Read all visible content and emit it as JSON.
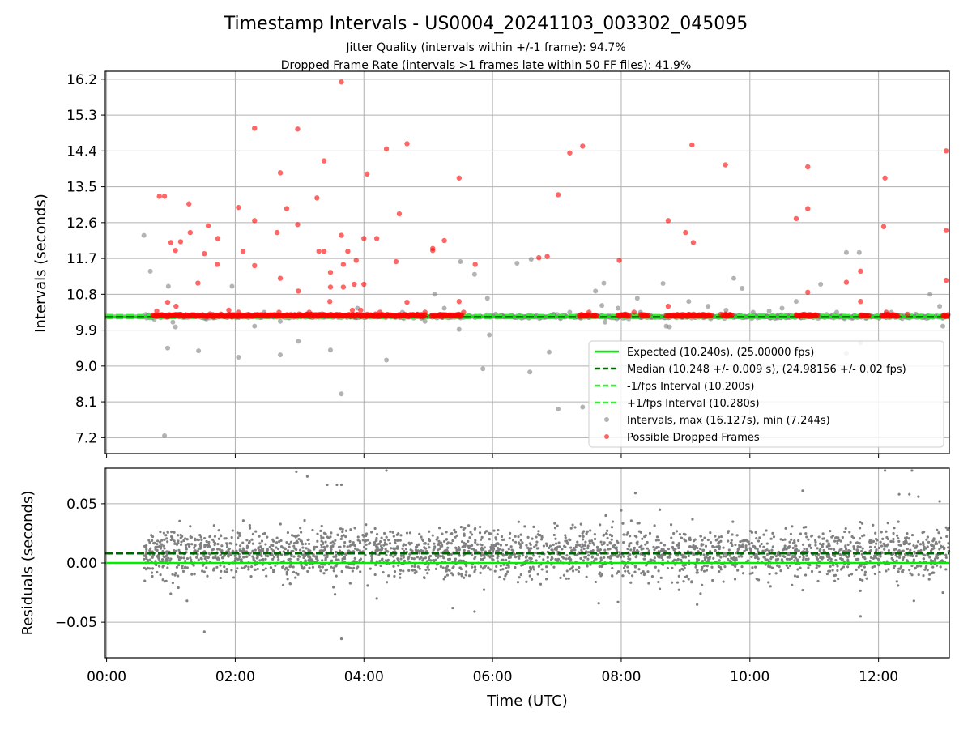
{
  "chart_data": [
    {
      "type": "scatter",
      "title": "Timestamp Intervals - US0004_20241103_003302_045095",
      "subtitle_lines": [
        "Jitter Quality (intervals within +/-1 frame): 94.7%",
        "Dropped Frame Rate (intervals >1 frames late within 50 FF files): 41.9%"
      ],
      "ylabel": "Intervals (seconds)",
      "xlim": [
        -0.02,
        13.1
      ],
      "ylim": [
        6.8,
        16.4
      ],
      "yticks": [
        "7.2",
        "8.1",
        "9.0",
        "9.9",
        "10.8",
        "11.7",
        "12.6",
        "13.5",
        "14.4",
        "15.3",
        "16.2"
      ],
      "ytick_values": [
        7.2,
        8.1,
        9.0,
        9.9,
        10.8,
        11.7,
        12.6,
        13.5,
        14.4,
        15.3,
        16.2
      ],
      "grid": true,
      "legend_position": "lower-right",
      "lines": [
        {
          "name": "Expected (10.240s), (25.00000 fps)",
          "y": 10.24,
          "color": "#00ee00",
          "style": "solid"
        },
        {
          "name": "Median (10.248 +/- 0.009 s), (24.98156 +/- 0.02 fps)",
          "y": 10.248,
          "color": "#006400",
          "style": "dashed"
        },
        {
          "name": "-1/fps Interval (10.200s)",
          "y": 10.2,
          "color": "#33ee33",
          "style": "dashed"
        },
        {
          "name": "+1/fps Interval (10.280s)",
          "y": 10.28,
          "color": "#33ee33",
          "style": "dashed"
        }
      ],
      "series": [
        {
          "name": "Intervals, max (16.127s), min (7.244s)",
          "color": "#808080",
          "points": [
            [
              0.58,
              12.28
            ],
            [
              0.68,
              11.38
            ],
            [
              0.9,
              7.25
            ],
            [
              0.95,
              9.45
            ],
            [
              0.96,
              11.0
            ],
            [
              1.03,
              10.1
            ],
            [
              1.07,
              9.98
            ],
            [
              1.43,
              9.38
            ],
            [
              1.55,
              10.18
            ],
            [
              1.95,
              11.0
            ],
            [
              2.05,
              9.22
            ],
            [
              2.3,
              10.0
            ],
            [
              2.7,
              10.12
            ],
            [
              2.7,
              9.28
            ],
            [
              2.98,
              9.62
            ],
            [
              3.48,
              9.4
            ],
            [
              3.65,
              8.3
            ],
            [
              4.0,
              10.25
            ],
            [
              4.35,
              9.15
            ],
            [
              4.95,
              10.12
            ],
            [
              5.1,
              10.8
            ],
            [
              5.25,
              10.45
            ],
            [
              5.5,
              11.62
            ],
            [
              5.48,
              9.92
            ],
            [
              5.72,
              11.3
            ],
            [
              5.85,
              8.93
            ],
            [
              5.92,
              10.7
            ],
            [
              5.95,
              9.78
            ],
            [
              6.38,
              11.58
            ],
            [
              6.58,
              8.85
            ],
            [
              6.6,
              11.68
            ],
            [
              6.88,
              9.35
            ],
            [
              7.02,
              7.92
            ],
            [
              7.4,
              7.97
            ],
            [
              7.6,
              10.88
            ],
            [
              7.7,
              10.52
            ],
            [
              7.73,
              11.08
            ],
            [
              7.75,
              10.1
            ],
            [
              7.95,
              10.45
            ],
            [
              8.25,
              10.7
            ],
            [
              8.3,
              10.35
            ],
            [
              8.65,
              11.07
            ],
            [
              8.7,
              10.0
            ],
            [
              8.75,
              9.98
            ],
            [
              9.05,
              10.62
            ],
            [
              9.35,
              10.5
            ],
            [
              9.63,
              10.4
            ],
            [
              9.75,
              11.2
            ],
            [
              9.88,
              10.95
            ],
            [
              10.3,
              10.38
            ],
            [
              10.5,
              10.45
            ],
            [
              10.72,
              10.62
            ],
            [
              10.92,
              10.3
            ],
            [
              11.1,
              11.05
            ],
            [
              11.5,
              11.85
            ],
            [
              11.5,
              9.32
            ],
            [
              11.7,
              11.85
            ],
            [
              11.72,
              9.58
            ],
            [
              12.58,
              10.3
            ],
            [
              12.8,
              10.8
            ],
            [
              12.95,
              10.5
            ],
            [
              13.0,
              10.0
            ],
            [
              1.15,
              10.3
            ],
            [
              1.62,
              10.25
            ],
            [
              2.45,
              10.35
            ],
            [
              3.1,
              10.3
            ],
            [
              3.9,
              10.45
            ],
            [
              4.6,
              10.35
            ],
            [
              6.05,
              10.3
            ],
            [
              6.95,
              10.3
            ],
            [
              7.2,
              10.35
            ],
            [
              8.05,
              10.3
            ],
            [
              8.95,
              10.3
            ],
            [
              10.05,
              10.35
            ],
            [
              11.35,
              10.35
            ],
            [
              12.2,
              10.35
            ]
          ]
        },
        {
          "name": "Possible Dropped Frames",
          "color": "#ff0000",
          "points": [
            [
              0.82,
              13.26
            ],
            [
              0.9,
              13.26
            ],
            [
              0.95,
              10.6
            ],
            [
              1.0,
              12.1
            ],
            [
              1.07,
              11.9
            ],
            [
              1.08,
              10.5
            ],
            [
              1.15,
              12.12
            ],
            [
              1.28,
              13.07
            ],
            [
              1.3,
              12.35
            ],
            [
              1.42,
              11.08
            ],
            [
              1.52,
              11.82
            ],
            [
              1.58,
              12.52
            ],
            [
              1.72,
              11.55
            ],
            [
              1.73,
              12.2
            ],
            [
              2.05,
              12.98
            ],
            [
              2.12,
              11.88
            ],
            [
              2.3,
              14.97
            ],
            [
              2.3,
              12.65
            ],
            [
              2.3,
              11.52
            ],
            [
              2.65,
              12.35
            ],
            [
              2.7,
              11.2
            ],
            [
              2.7,
              13.85
            ],
            [
              2.8,
              12.95
            ],
            [
              2.97,
              14.95
            ],
            [
              2.97,
              12.55
            ],
            [
              2.98,
              10.88
            ],
            [
              3.27,
              13.22
            ],
            [
              3.3,
              11.88
            ],
            [
              3.38,
              14.15
            ],
            [
              3.38,
              11.88
            ],
            [
              3.47,
              10.62
            ],
            [
              3.48,
              10.98
            ],
            [
              3.48,
              11.35
            ],
            [
              3.65,
              16.13
            ],
            [
              3.65,
              12.28
            ],
            [
              3.68,
              11.55
            ],
            [
              3.68,
              10.98
            ],
            [
              3.75,
              11.88
            ],
            [
              3.82,
              10.4
            ],
            [
              3.85,
              11.05
            ],
            [
              3.88,
              11.65
            ],
            [
              4.0,
              11.05
            ],
            [
              4.0,
              12.2
            ],
            [
              4.05,
              13.82
            ],
            [
              4.2,
              12.2
            ],
            [
              4.35,
              14.45
            ],
            [
              4.5,
              11.62
            ],
            [
              4.55,
              12.82
            ],
            [
              4.67,
              14.58
            ],
            [
              4.67,
              10.6
            ],
            [
              5.07,
              11.95
            ],
            [
              5.07,
              11.9
            ],
            [
              5.25,
              12.15
            ],
            [
              5.48,
              13.72
            ],
            [
              5.48,
              10.62
            ],
            [
              5.73,
              11.55
            ],
            [
              6.72,
              11.72
            ],
            [
              6.85,
              11.75
            ],
            [
              7.02,
              13.3
            ],
            [
              7.2,
              14.35
            ],
            [
              7.4,
              14.52
            ],
            [
              7.97,
              11.65
            ],
            [
              8.73,
              12.65
            ],
            [
              8.73,
              10.5
            ],
            [
              9.0,
              12.35
            ],
            [
              9.1,
              14.55
            ],
            [
              9.12,
              12.1
            ],
            [
              9.62,
              14.05
            ],
            [
              10.72,
              12.7
            ],
            [
              10.9,
              14.0
            ],
            [
              10.9,
              12.95
            ],
            [
              10.9,
              10.85
            ],
            [
              11.5,
              11.1
            ],
            [
              11.72,
              11.38
            ],
            [
              11.72,
              10.62
            ],
            [
              12.08,
              12.5
            ],
            [
              12.1,
              13.72
            ],
            [
              13.05,
              14.4
            ],
            [
              13.05,
              12.4
            ],
            [
              13.05,
              11.15
            ],
            [
              0.78,
              10.38
            ],
            [
              1.9,
              10.4
            ],
            [
              2.05,
              10.35
            ],
            [
              2.68,
              10.35
            ],
            [
              3.15,
              10.35
            ],
            [
              3.95,
              10.4
            ],
            [
              4.25,
              10.35
            ],
            [
              4.95,
              10.35
            ],
            [
              5.55,
              10.35
            ],
            [
              7.5,
              10.35
            ],
            [
              8.2,
              10.35
            ],
            [
              9.55,
              10.3
            ],
            [
              10.85,
              10.3
            ],
            [
              12.12,
              10.35
            ],
            [
              12.45,
              10.3
            ]
          ],
          "dense_bands": [
            [
              0.72,
              4.95
            ],
            [
              5.05,
              5.52
            ],
            [
              7.35,
              7.5
            ],
            [
              7.55,
              7.62
            ],
            [
              7.95,
              8.12
            ],
            [
              8.3,
              8.42
            ],
            [
              8.7,
              9.4
            ],
            [
              9.58,
              9.72
            ],
            [
              10.72,
              11.05
            ],
            [
              11.72,
              11.85
            ],
            [
              12.05,
              12.3
            ],
            [
              13.0,
              13.08
            ]
          ]
        }
      ]
    },
    {
      "type": "scatter",
      "xlabel": "Time (UTC)",
      "ylabel": "Residuals (seconds)",
      "xlim": [
        -0.02,
        13.1
      ],
      "ylim": [
        -0.08,
        0.08
      ],
      "xticks": [
        "00:00",
        "02:00",
        "04:00",
        "06:00",
        "08:00",
        "10:00",
        "12:00"
      ],
      "xtick_values": [
        0,
        2,
        4,
        6,
        8,
        10,
        12
      ],
      "yticks": [
        "−0.05",
        "0.00",
        "0.05"
      ],
      "ytick_values": [
        -0.05,
        0.0,
        0.05
      ],
      "grid": true,
      "lines": [
        {
          "y": 0.0,
          "color": "#00ee00",
          "style": "solid"
        },
        {
          "y": 0.008,
          "color": "#006400",
          "style": "dashed"
        }
      ],
      "series": [
        {
          "color": "#808080",
          "x_range": [
            0.58,
            13.1
          ],
          "center": 0.008,
          "spread": 0.012,
          "outliers": [
            [
              2.95,
              0.077
            ],
            [
              3.12,
              0.073
            ],
            [
              3.43,
              0.066
            ],
            [
              3.58,
              0.066
            ],
            [
              3.65,
              0.066
            ],
            [
              4.35,
              0.078
            ],
            [
              12.1,
              0.078
            ],
            [
              12.52,
              0.078
            ],
            [
              12.32,
              0.058
            ],
            [
              12.48,
              0.058
            ],
            [
              12.62,
              0.056
            ],
            [
              12.95,
              0.052
            ],
            [
              8.22,
              0.059
            ],
            [
              10.82,
              0.061
            ],
            [
              1.52,
              -0.058
            ],
            [
              3.65,
              -0.064
            ],
            [
              11.72,
              -0.045
            ],
            [
              9.18,
              -0.035
            ],
            [
              7.65,
              -0.034
            ],
            [
              7.95,
              -0.033
            ],
            [
              1.25,
              -0.032
            ],
            [
              5.38,
              -0.038
            ],
            [
              5.72,
              -0.041
            ],
            [
              12.55,
              -0.032
            ],
            [
              13.0,
              -0.025
            ],
            [
              4.2,
              -0.03
            ]
          ]
        }
      ]
    }
  ]
}
